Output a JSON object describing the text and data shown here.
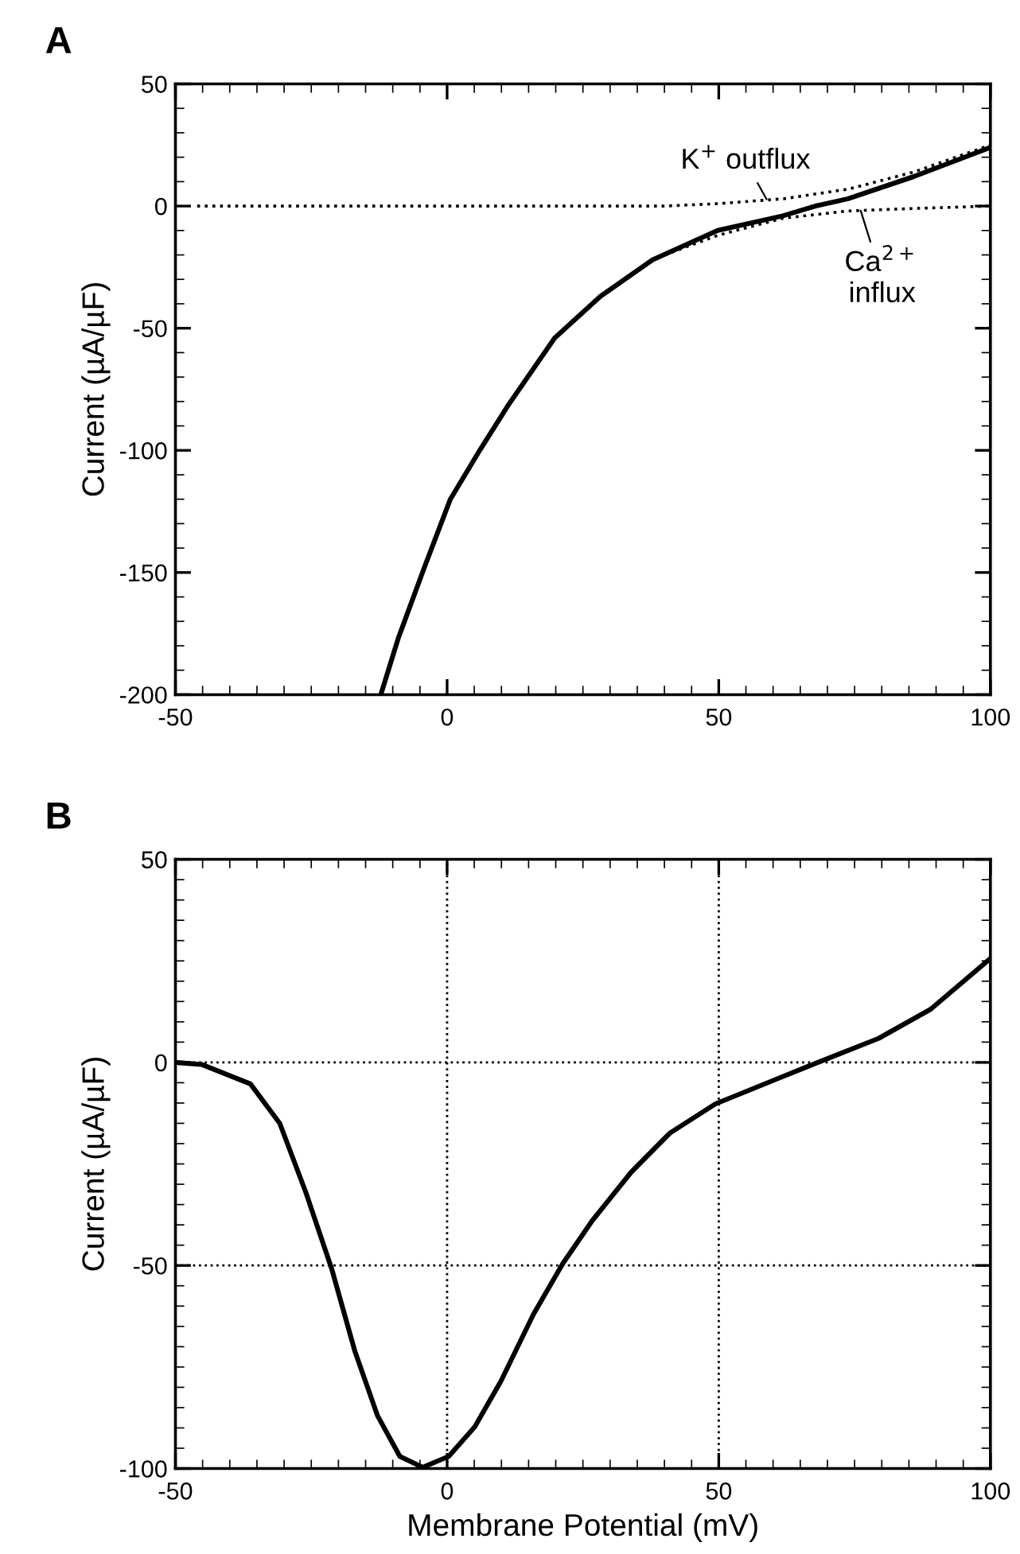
{
  "chart_data": [
    {
      "type": "line",
      "title": "A",
      "ylabel": "Current (µA/µF)",
      "xlim": [
        -50,
        100
      ],
      "ylim": [
        -200,
        50
      ],
      "xticks": [
        -50,
        0,
        50,
        100
      ],
      "yticks": [
        -200,
        -150,
        -100,
        -50,
        0,
        50
      ],
      "grid": false,
      "legend": false,
      "series": [
        {
          "color": "#000000",
          "line_style": "solid",
          "x": [
            -12.2,
            -9.0,
            -4.2,
            0.6,
            6,
            11.4,
            19.8,
            28.2,
            37.8,
            49.8,
            61.8,
            67.8,
            73.8,
            85.8,
            100
          ],
          "values": [
            -200,
            -177,
            -148,
            -120,
            -100,
            -81,
            -54,
            -37,
            -22,
            -10,
            -4,
            0,
            3,
            12,
            24
          ]
        },
        {
          "color": "#000000",
          "line_style": "dotted",
          "x": [
            -46,
            0,
            40,
            50,
            62,
            74,
            86,
            100
          ],
          "values": [
            0,
            0,
            0,
            1,
            3,
            7,
            14,
            25
          ]
        },
        {
          "color": "#000000",
          "line_style": "dotted",
          "x": [
            40,
            49.8,
            61.8,
            73.8,
            85.8,
            100
          ],
          "values": [
            -20,
            -12,
            -5,
            -2,
            -1,
            0
          ]
        }
      ],
      "annotations": [
        {
          "text": "K$^{+}$ outflux",
          "x": 59,
          "y": 2
        },
        {
          "text": "Ca$^{2+}$\ninflux",
          "x": 76,
          "y": -1
        }
      ]
    },
    {
      "type": "line",
      "title": "B",
      "xlabel": "Membrane Potential (mV)",
      "ylabel": "Current (µA/µF)",
      "xlim": [
        -50,
        100
      ],
      "ylim": [
        -100,
        50
      ],
      "xticks": [
        -50,
        0,
        50,
        100
      ],
      "yticks": [
        -100,
        -50,
        0,
        50
      ],
      "grid": true,
      "legend": false,
      "series": [
        {
          "color": "#000000",
          "line_style": "solid",
          "x": [
            -50,
            -45.2,
            -36.2,
            -30.8,
            -26,
            -21.2,
            -17,
            -12.8,
            -8.7,
            -4.5,
            0.3,
            5.1,
            9.9,
            15.9,
            21.3,
            26.7,
            33.9,
            41,
            49.4,
            61.4,
            68.8,
            79.4,
            89,
            100
          ],
          "values": [
            0,
            -0.5,
            -5.3,
            -15,
            -32,
            -51,
            -71,
            -87,
            -97,
            -99.7,
            -97,
            -89.7,
            -78.5,
            -62,
            -49.5,
            -39,
            -27,
            -17.4,
            -10.2,
            -3.7,
            0.3,
            5.9,
            13.1,
            25.6
          ]
        }
      ]
    }
  ]
}
